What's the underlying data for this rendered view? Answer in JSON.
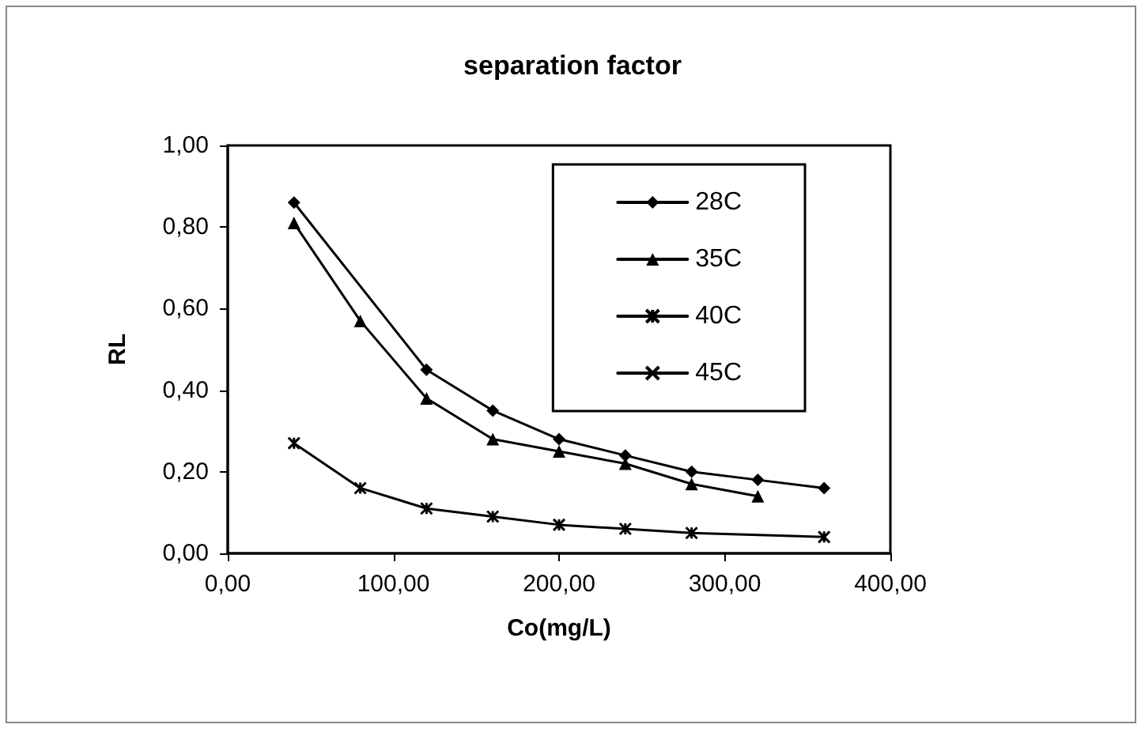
{
  "chart_data": {
    "type": "line",
    "title": "separation factor",
    "xlabel": "Co(mg/L)",
    "ylabel": "RL",
    "x": [
      40,
      80,
      120,
      160,
      200,
      240,
      280,
      320,
      360
    ],
    "series": [
      {
        "name": "28C",
        "color": "#000000",
        "marker": "diamond",
        "values": [
          0.86,
          null,
          0.45,
          0.35,
          0.28,
          0.24,
          0.2,
          0.18,
          0.16
        ]
      },
      {
        "name": "35C",
        "color": "#000000",
        "marker": "triangle",
        "values": [
          0.81,
          0.57,
          0.38,
          0.28,
          0.25,
          0.22,
          0.17,
          0.14,
          null
        ]
      },
      {
        "name": "40C",
        "color": "#000000",
        "marker": "cross",
        "values": [
          0.27,
          0.16,
          0.11,
          0.09,
          0.07,
          0.06,
          0.05,
          null,
          0.04
        ]
      },
      {
        "name": "45C",
        "color": "#000000",
        "marker": "cross",
        "values": [
          null,
          null,
          null,
          null,
          null,
          null,
          null,
          null,
          null
        ]
      }
    ],
    "xlim": [
      0,
      400
    ],
    "xticks": [
      {
        "value": 0,
        "label": "0,00"
      },
      {
        "value": 100,
        "label": "100,00"
      },
      {
        "value": 200,
        "label": "200,00"
      },
      {
        "value": 300,
        "label": "300,00"
      },
      {
        "value": 400,
        "label": "400,00"
      }
    ],
    "ylim": [
      0,
      1
    ],
    "yticks": [
      {
        "value": 0,
        "label": "0,00"
      },
      {
        "value": 0.2,
        "label": "0,20"
      },
      {
        "value": 0.4,
        "label": "0,40"
      },
      {
        "value": 0.6,
        "label": "0,60"
      },
      {
        "value": 0.8,
        "label": "0,80"
      },
      {
        "value": 1,
        "label": "1,00"
      }
    ],
    "grid": false,
    "legend": "top right",
    "line_style": "solid"
  }
}
